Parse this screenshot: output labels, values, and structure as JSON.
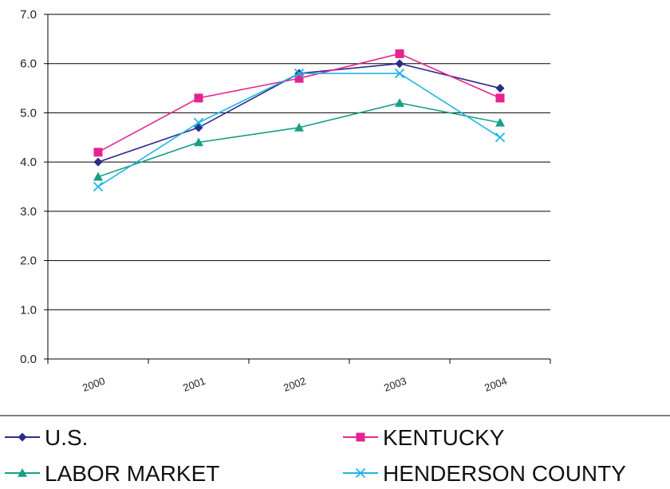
{
  "chart_data": {
    "type": "line",
    "categories": [
      "2000",
      "2001",
      "2002",
      "2003",
      "2004"
    ],
    "ylim": [
      0,
      7
    ],
    "yticks": [
      "0.0",
      "1.0",
      "2.0",
      "3.0",
      "4.0",
      "5.0",
      "6.0",
      "7.0"
    ],
    "grid": true,
    "legend_placement": "bottom",
    "series": [
      {
        "name": "U.S.",
        "values": [
          4.0,
          4.7,
          5.8,
          6.0,
          5.5
        ],
        "color": "#2b2d86",
        "marker": "diamond"
      },
      {
        "name": "KENTUCKY",
        "values": [
          4.2,
          5.3,
          5.7,
          6.2,
          5.3
        ],
        "color": "#e6248f",
        "marker": "square"
      },
      {
        "name": "LABOR  MARKET",
        "values": [
          3.7,
          4.4,
          4.7,
          5.2,
          4.8
        ],
        "color": "#16a085",
        "marker": "triangle"
      },
      {
        "name": "HENDERSON COUNTY",
        "values": [
          3.5,
          4.8,
          5.8,
          5.8,
          4.5
        ],
        "color": "#1fb4e6",
        "marker": "x"
      }
    ]
  }
}
